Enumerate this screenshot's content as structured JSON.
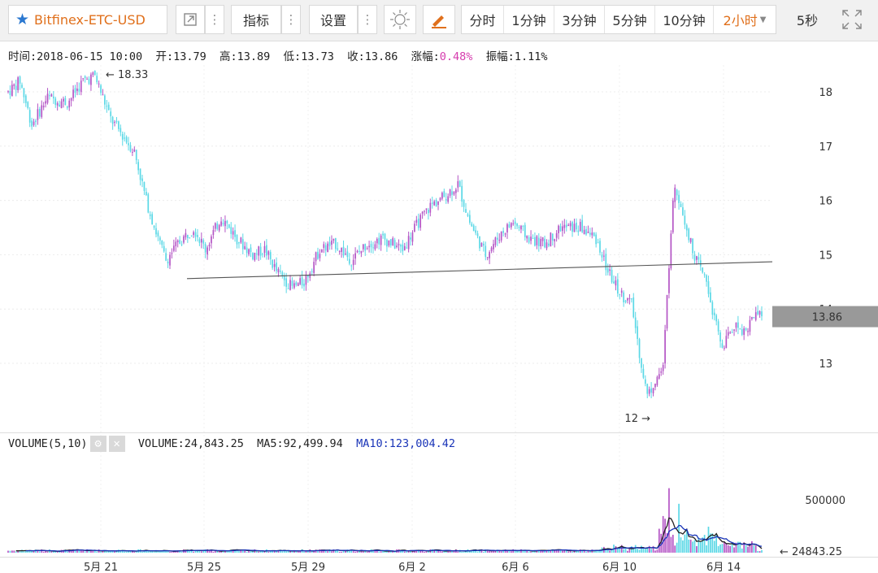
{
  "toolbar": {
    "symbol": "Bitfinex-ETC-USD",
    "indicators_label": "指标",
    "settings_label": "设置",
    "intervals": [
      "分时",
      "1分钟",
      "3分钟",
      "5分钟",
      "10分钟",
      "2小时"
    ],
    "active_interval": "2小时",
    "refresh_label": "5秒",
    "accent_color": "#e0701c"
  },
  "infobar": {
    "time_label": "时间:",
    "time_value": "2018-06-15 10:00",
    "open_label": "开:",
    "open_value": "13.79",
    "high_label": "高:",
    "high_value": "13.89",
    "low_label": "低:",
    "low_value": "13.73",
    "close_label": "收:",
    "close_value": "13.86",
    "change_label": "涨幅:",
    "change_value": "0.48%",
    "amplitude_label": "振幅:",
    "amplitude_value": "1.11%"
  },
  "volume_bar": {
    "title": "VOLUME(5,10)",
    "volume_label": "VOLUME:",
    "volume_value": "24,843.25",
    "ma5_label": "MA5:",
    "ma5_value": "92,499.94",
    "ma10_label": "MA10:",
    "ma10_value": "123,004.42"
  },
  "chart_data": {
    "type": "candlestick",
    "up_color": "#b455c5",
    "down_color": "#5bd8e6",
    "price_axis": {
      "ticks": [
        13,
        14,
        15,
        16,
        17,
        18
      ],
      "ylim": [
        12,
        18.5
      ]
    },
    "last_price": "13.86",
    "high_marker": "18.33",
    "low_marker": "12",
    "x_ticks": [
      "5月 21",
      "5月 25",
      "5月 29",
      "6月 2",
      "6月 6",
      "6月 10",
      "6月 14"
    ],
    "trendline": [
      [
        14.56,
        14.87
      ]
    ],
    "volume_axis": {
      "ticks": [
        "500000"
      ],
      "last_value": "24843.25"
    },
    "price_anchors": [
      [
        0,
        18.0
      ],
      [
        6,
        18.2
      ],
      [
        12,
        17.4
      ],
      [
        20,
        17.9
      ],
      [
        30,
        17.8
      ],
      [
        38,
        18.2
      ],
      [
        44,
        18.3
      ],
      [
        52,
        17.5
      ],
      [
        58,
        17.2
      ],
      [
        64,
        16.9
      ],
      [
        70,
        16.0
      ],
      [
        76,
        15.3
      ],
      [
        80,
        14.9
      ],
      [
        86,
        15.2
      ],
      [
        94,
        15.5
      ],
      [
        100,
        15.1
      ],
      [
        108,
        15.7
      ],
      [
        116,
        15.3
      ],
      [
        124,
        15.0
      ],
      [
        130,
        15.1
      ],
      [
        136,
        14.7
      ],
      [
        144,
        14.4
      ],
      [
        150,
        14.5
      ],
      [
        158,
        15.1
      ],
      [
        166,
        15.2
      ],
      [
        174,
        14.9
      ],
      [
        182,
        15.2
      ],
      [
        190,
        15.3
      ],
      [
        200,
        15.1
      ],
      [
        208,
        15.6
      ],
      [
        214,
        15.9
      ],
      [
        222,
        16.1
      ],
      [
        228,
        16.3
      ],
      [
        234,
        15.6
      ],
      [
        242,
        15.0
      ],
      [
        250,
        15.4
      ],
      [
        256,
        15.6
      ],
      [
        264,
        15.3
      ],
      [
        272,
        15.2
      ],
      [
        280,
        15.5
      ],
      [
        290,
        15.5
      ],
      [
        298,
        15.3
      ],
      [
        304,
        14.7
      ],
      [
        310,
        14.3
      ],
      [
        316,
        14.1
      ],
      [
        320,
        13.2
      ],
      [
        324,
        12.4
      ],
      [
        328,
        12.7
      ],
      [
        332,
        12.9
      ],
      [
        336,
        15.5
      ],
      [
        338,
        16.3
      ],
      [
        342,
        15.8
      ],
      [
        346,
        15.2
      ],
      [
        350,
        14.8
      ],
      [
        354,
        14.5
      ],
      [
        358,
        13.8
      ],
      [
        362,
        13.3
      ],
      [
        368,
        13.7
      ],
      [
        374,
        13.6
      ],
      [
        378,
        13.9
      ],
      [
        382,
        13.86
      ]
    ]
  }
}
